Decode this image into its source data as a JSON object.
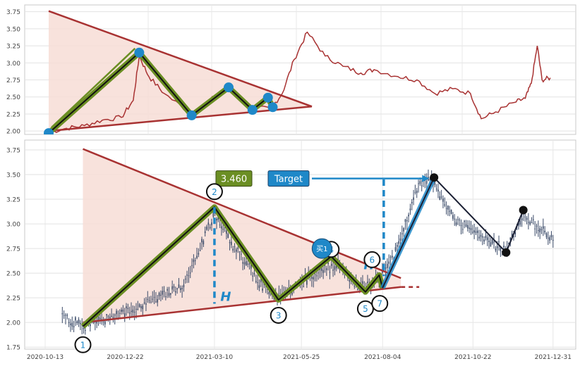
{
  "chart_data": [
    {
      "type": "line",
      "panel": "overview",
      "ylim": [
        1.95,
        3.85
      ],
      "yticks": [
        "2.00",
        "2.25",
        "2.50",
        "2.75",
        "3.00",
        "3.25",
        "3.50",
        "3.75"
      ],
      "x_range": [
        "2020-11-05",
        "2021-12-31"
      ],
      "price": {
        "color": "#a83232",
        "points": [
          [
            "2020-11-05",
            1.98
          ],
          [
            "2020-11-20",
            2.04
          ],
          [
            "2020-12-05",
            2.08
          ],
          [
            "2020-12-20",
            2.16
          ],
          [
            "2021-01-05",
            2.2
          ],
          [
            "2021-01-15",
            2.45
          ],
          [
            "2021-01-20",
            3.1
          ],
          [
            "2021-01-28",
            2.8
          ],
          [
            "2021-02-10",
            2.55
          ],
          [
            "2021-03-05",
            2.25
          ],
          [
            "2021-03-20",
            2.45
          ],
          [
            "2021-04-05",
            2.62
          ],
          [
            "2021-04-25",
            2.35
          ],
          [
            "2021-05-10",
            2.32
          ],
          [
            "2021-05-20",
            2.55
          ],
          [
            "2021-05-30",
            3.05
          ],
          [
            "2021-06-10",
            3.45
          ],
          [
            "2021-06-25",
            3.1
          ],
          [
            "2021-07-10",
            2.95
          ],
          [
            "2021-07-25",
            2.85
          ],
          [
            "2021-08-05",
            2.9
          ],
          [
            "2021-08-25",
            2.8
          ],
          [
            "2021-09-10",
            2.75
          ],
          [
            "2021-09-25",
            2.55
          ],
          [
            "2021-10-10",
            2.62
          ],
          [
            "2021-10-25",
            2.55
          ],
          [
            "2021-11-03",
            2.18
          ],
          [
            "2021-11-15",
            2.28
          ],
          [
            "2021-12-01",
            2.42
          ],
          [
            "2021-12-10",
            2.48
          ],
          [
            "2021-12-15",
            2.7
          ],
          [
            "2021-12-20",
            3.25
          ],
          [
            "2021-12-24",
            2.75
          ],
          [
            "2021-12-31",
            2.78
          ]
        ]
      },
      "pattern_points": [
        [
          "2020-11-05",
          1.97
        ],
        [
          "2021-01-20",
          3.15
        ],
        [
          "2021-03-05",
          2.23
        ],
        [
          "2021-04-05",
          2.64
        ],
        [
          "2021-04-25",
          2.31
        ],
        [
          "2021-05-08",
          2.49
        ],
        [
          "2021-05-12",
          2.35
        ]
      ],
      "trendlines": {
        "upper": [
          [
            "2020-11-05",
            3.76
          ],
          [
            "2021-05-20",
            2.36
          ]
        ],
        "lower": [
          [
            "2020-11-05",
            2.0
          ],
          [
            "2021-05-20",
            2.36
          ]
        ]
      }
    },
    {
      "type": "line",
      "panel": "detail",
      "ylim": [
        1.73,
        3.85
      ],
      "yticks": [
        "1.75",
        "2.00",
        "2.25",
        "2.50",
        "2.75",
        "3.00",
        "3.25",
        "3.50",
        "3.75"
      ],
      "x_range": [
        "2020-10-13",
        "2022-01-10"
      ],
      "xticks": [
        "2020-10-13",
        "2020-12-22",
        "2021-03-10",
        "2021-05-25",
        "2021-08-04",
        "2021-10-22",
        "2021-12-31"
      ],
      "candles": {
        "color": "#3a4a68",
        "count": 300,
        "start": "2020-10-28",
        "end": "2021-12-31",
        "trend": [
          [
            "2020-10-28",
            2.05
          ],
          [
            "2020-11-15",
            1.96
          ],
          [
            "2020-12-10",
            2.05
          ],
          [
            "2021-01-10",
            2.2
          ],
          [
            "2021-02-10",
            2.35
          ],
          [
            "2021-03-10",
            3.1
          ],
          [
            "2021-03-25",
            2.8
          ],
          [
            "2021-04-20",
            2.38
          ],
          [
            "2021-05-05",
            2.25
          ],
          [
            "2021-06-01",
            2.45
          ],
          [
            "2021-06-25",
            2.6
          ],
          [
            "2021-07-15",
            2.35
          ],
          [
            "2021-08-01",
            2.45
          ],
          [
            "2021-08-15",
            2.7
          ],
          [
            "2021-09-05",
            3.4
          ],
          [
            "2021-09-15",
            3.45
          ],
          [
            "2021-10-05",
            3.05
          ],
          [
            "2021-11-20",
            2.72
          ],
          [
            "2021-12-05",
            3.1
          ],
          [
            "2021-12-25",
            2.9
          ],
          [
            "2021-12-31",
            2.85
          ]
        ]
      },
      "triangle": {
        "upper": [
          [
            "2020-11-15",
            3.76
          ],
          [
            "2021-08-20",
            2.45
          ]
        ],
        "lower": [
          [
            "2020-11-15",
            2.0
          ],
          [
            "2021-08-20",
            2.36
          ]
        ],
        "dashed_extension": [
          [
            "2021-08-20",
            2.36
          ],
          [
            "2021-09-05",
            2.36
          ]
        ]
      },
      "pattern": [
        {
          "label": "1",
          "date": "2020-11-15",
          "value": 1.96
        },
        {
          "label": "2",
          "date": "2021-03-10",
          "value": 3.17
        },
        {
          "label": "3",
          "date": "2021-05-05",
          "value": 2.23
        },
        {
          "label": "4",
          "date": "2021-06-20",
          "value": 2.67
        },
        {
          "label": "5",
          "date": "2021-07-20",
          "value": 2.31
        },
        {
          "label": "6",
          "date": "2021-08-01",
          "value": 2.48
        },
        {
          "label": "7",
          "date": "2021-08-04",
          "value": 2.35
        }
      ],
      "breakout_path": [
        [
          "2021-08-04",
          2.35
        ],
        [
          "2021-09-18",
          3.47
        ],
        [
          "2021-11-20",
          2.71
        ],
        [
          "2021-12-05",
          3.14
        ]
      ],
      "height_markers": [
        {
          "label": "H",
          "date": "2021-03-10",
          "from": 3.17,
          "to": 2.19
        },
        {
          "label": "H",
          "date": "2021-08-05",
          "from": 3.45,
          "to": 2.47
        }
      ],
      "target": {
        "label": "Target",
        "value": 3.46,
        "date": "2021-09-15"
      },
      "target_value_label": "3.460",
      "buy_signal": {
        "label": "买1",
        "date": "2021-06-12",
        "value": 2.75
      },
      "colors": {
        "trendline": "#a83232",
        "fill": "#f7ddd6",
        "pattern_outer": "#6b8e23",
        "pattern_inner": "#111111",
        "marker_blue": "#1f88c8",
        "target_box": "#1f88c8",
        "value_box": "#6b8e23",
        "height_marker": "#1f88c8"
      }
    }
  ]
}
